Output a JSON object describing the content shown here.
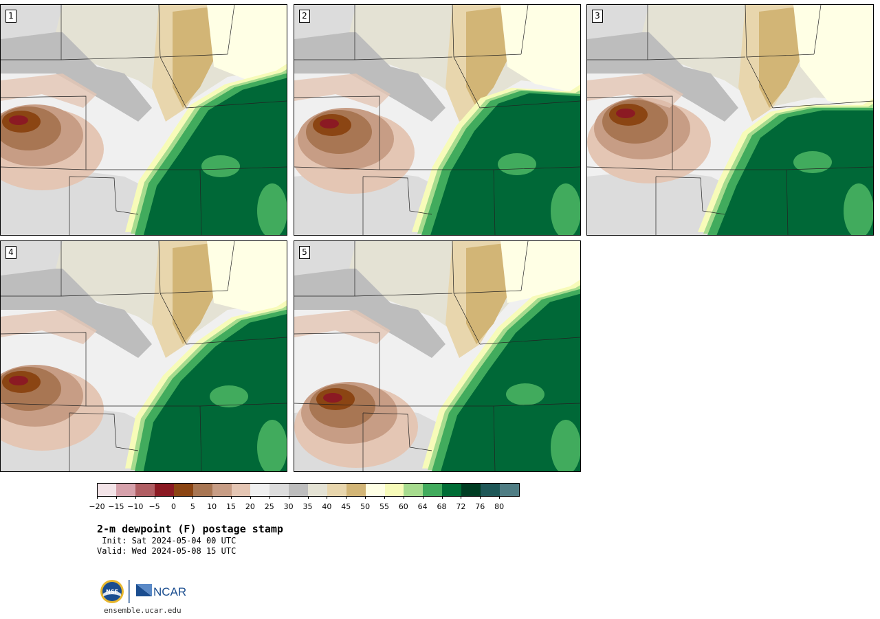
{
  "title": "2-m dewpoint (F) postage stamp",
  "init_line": " Init: Sat 2024-05-04 00 UTC",
  "valid_line": "Valid: Wed 2024-05-08 15 UTC",
  "site": "ensemble.ucar.edu",
  "logos": {
    "nsf": "NSF",
    "ncar": "NCAR"
  },
  "panels": [
    {
      "label": "1"
    },
    {
      "label": "2"
    },
    {
      "label": "3"
    },
    {
      "label": "4"
    },
    {
      "label": "5"
    }
  ],
  "colorbar": {
    "tick_labels": [
      "−20",
      "−15",
      "−10",
      "−5",
      "0",
      "5",
      "10",
      "15",
      "20",
      "25",
      "30",
      "35",
      "40",
      "45",
      "50",
      "55",
      "60",
      "64",
      "68",
      "72",
      "76",
      "80"
    ],
    "colors": [
      "#f3e4e8",
      "#d6a1ab",
      "#b05e63",
      "#8b1a23",
      "#8b4513",
      "#a87653",
      "#c79d85",
      "#e4c6b4",
      "#f0f0f0",
      "#dcdcdc",
      "#bdbdbd",
      "#e4e2d4",
      "#e8d6ad",
      "#d2b576",
      "#ffffe5",
      "#f7fbb9",
      "#a6db8e",
      "#41ab5d",
      "#006d36",
      "#003d23",
      "#1f5858",
      "#4f7d84"
    ]
  },
  "map_colors": {
    "moist_dark": "#006837",
    "moist_mid": "#41ab5d",
    "moist_light": "#a6db8e",
    "pale_yellow": "#f7fbb9",
    "cream": "#ffffe5",
    "tan": "#d2b576",
    "light_tan": "#e8d6ad",
    "beige": "#e4e2d4",
    "gray": "#bdbdbd",
    "light_gray": "#dcdcdc",
    "very_light": "#f0f0f0",
    "peach": "#e4c6b4",
    "light_brown": "#c79d85",
    "brown": "#a87653",
    "dark_brown": "#8b4513",
    "maroon": "#8b1a23"
  }
}
